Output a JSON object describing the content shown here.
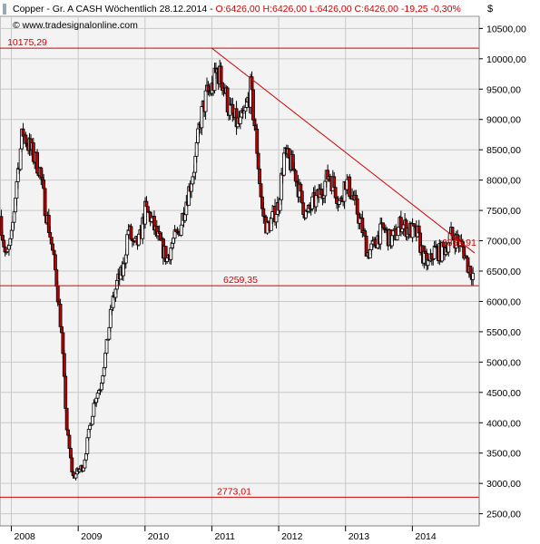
{
  "header": {
    "title_line": "Copper - Gr. A CASH Wöchentlich  28.12.2014 - ",
    "ohlc": "O:6426,00 H:6426,00 L:6426,00 C:6426,00 -19,25 -0,30%",
    "source": "© www.tradesignalonline.com",
    "currency": "$"
  },
  "colors": {
    "grid": "#c8c8c8",
    "plot_bg": "#f3f3f3",
    "line": "#d40000",
    "up_fill": "#ffffff",
    "down_fill": "#c00000",
    "candle_outline": "#000000"
  },
  "chart_data": {
    "type": "candlestick",
    "y_axis": {
      "min": 2300,
      "max": 10700,
      "ticks": [
        "2500,00",
        "3000,00",
        "3500,00",
        "4000,00",
        "4500,00",
        "5000,00",
        "5500,00",
        "6000,00",
        "6500,00",
        "7000,00",
        "7500,00",
        "8000,00",
        "8500,00",
        "9000,00",
        "9500,00",
        "10000,00",
        "10500,00"
      ],
      "tick_values": [
        2500,
        3000,
        3500,
        4000,
        4500,
        5000,
        5500,
        6000,
        6500,
        7000,
        7500,
        8000,
        8500,
        9000,
        9500,
        10000,
        10500
      ]
    },
    "x_axis": {
      "labels": [
        "2008",
        "2009",
        "2010",
        "2011",
        "2012",
        "2013",
        "2014"
      ],
      "label_dates": [
        2008.0,
        2009.0,
        2010.0,
        2011.0,
        2012.0,
        2013.0,
        2014.0
      ],
      "range": [
        2007.83,
        2015.0
      ]
    },
    "horizontal_lines": [
      {
        "value": 10175.29,
        "label": "10175,29"
      },
      {
        "value": 6259.35,
        "label": "6259,35"
      },
      {
        "value": 2773.01,
        "label": "2773,01"
      }
    ],
    "trendline": {
      "x": [
        2011.0,
        2014.93
      ],
      "y": [
        10175,
        6800
      ],
      "label": "6869,91"
    },
    "close_path": {
      "x": [
        2007.83,
        2007.92,
        2008.0,
        2008.08,
        2008.17,
        2008.25,
        2008.33,
        2008.42,
        2008.5,
        2008.58,
        2008.67,
        2008.75,
        2008.83,
        2008.92,
        2009.0,
        2009.08,
        2009.17,
        2009.25,
        2009.33,
        2009.42,
        2009.5,
        2009.58,
        2009.67,
        2009.75,
        2009.83,
        2009.92,
        2010.0,
        2010.08,
        2010.17,
        2010.25,
        2010.33,
        2010.42,
        2010.5,
        2010.58,
        2010.67,
        2010.75,
        2010.83,
        2010.92,
        2011.0,
        2011.08,
        2011.17,
        2011.25,
        2011.33,
        2011.42,
        2011.5,
        2011.58,
        2011.67,
        2011.75,
        2011.83,
        2011.92,
        2012.0,
        2012.08,
        2012.17,
        2012.25,
        2012.33,
        2012.42,
        2012.5,
        2012.58,
        2012.67,
        2012.75,
        2012.83,
        2012.92,
        2013.0,
        2013.08,
        2013.17,
        2013.25,
        2013.33,
        2013.42,
        2013.5,
        2013.58,
        2013.67,
        2013.75,
        2013.83,
        2013.92,
        2014.0,
        2014.08,
        2014.17,
        2014.25,
        2014.33,
        2014.42,
        2014.5,
        2014.58,
        2014.67,
        2014.75,
        2014.83,
        2014.92
      ],
      "y": [
        7400,
        6700,
        7000,
        8000,
        8800,
        8600,
        8400,
        8200,
        7600,
        7100,
        6400,
        5500,
        3900,
        3100,
        3200,
        3300,
        3900,
        4400,
        4600,
        5200,
        5900,
        6300,
        6500,
        7200,
        6900,
        7000,
        7500,
        7400,
        7100,
        6900,
        6700,
        7000,
        7100,
        7500,
        7900,
        8300,
        9000,
        9400,
        9500,
        9800,
        9600,
        9200,
        9000,
        8900,
        9100,
        9500,
        8600,
        7500,
        7200,
        7400,
        7600,
        8400,
        8300,
        8100,
        7700,
        7400,
        7600,
        7700,
        7900,
        8100,
        7900,
        7600,
        8000,
        7800,
        7500,
        7200,
        6800,
        6900,
        7100,
        7200,
        7000,
        7100,
        7300,
        7200,
        7150,
        7100,
        6700,
        6600,
        6850,
        6800,
        6900,
        7100,
        7000,
        6900,
        6600,
        6426
      ]
    }
  }
}
